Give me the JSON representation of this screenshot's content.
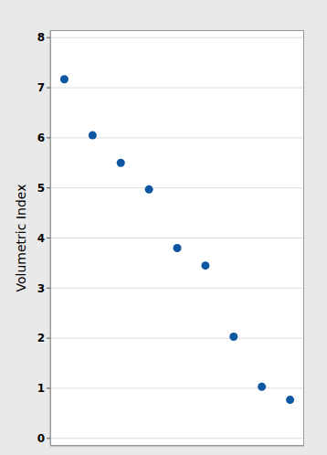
{
  "chart_data": {
    "type": "scatter",
    "ylabel": "Volumetric Index",
    "values": [
      7.17,
      6.05,
      5.5,
      4.97,
      3.8,
      3.45,
      2.03,
      1.03,
      0.77
    ],
    "color": "#0d56a1",
    "ylim": [
      -0.15,
      8.15
    ],
    "yticks": [
      0,
      1,
      2,
      3,
      4,
      5,
      6,
      7,
      8
    ],
    "grid": true,
    "tick_labels": "y",
    "marker": "circle"
  }
}
